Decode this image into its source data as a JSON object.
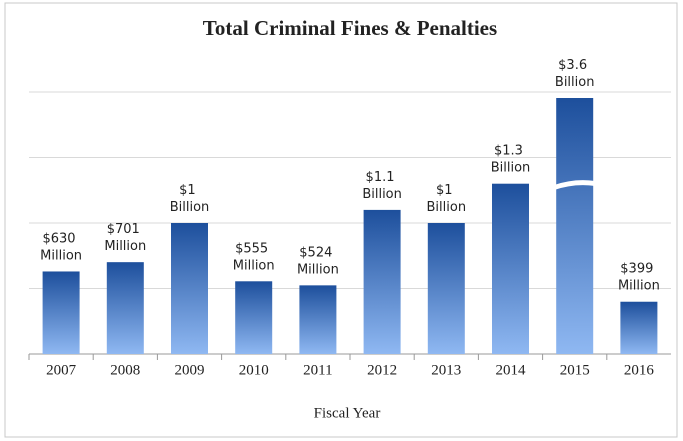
{
  "chart_data": {
    "type": "bar",
    "title": "Total Criminal Fines & Penalties",
    "x_label": "Fiscal Year",
    "categories": [
      "2007",
      "2008",
      "2009",
      "2010",
      "2011",
      "2012",
      "2013",
      "2014",
      "2015",
      "2016"
    ],
    "values": [
      630,
      701,
      1000,
      555,
      524,
      1100,
      1000,
      1300,
      3600,
      399
    ],
    "value_labels": [
      "$630 Million",
      "$701 Million",
      "$1 Billion",
      "$555 Million",
      "$524 Million",
      "$1.1 Billion",
      "$1 Billion",
      "$1.3 Billion",
      "$3.6 Billion",
      "$399 Million"
    ],
    "color": "#1d4f9c",
    "ylim": [
      0,
      2000
    ],
    "yticks": [
      0,
      500,
      1000,
      1500,
      2000
    ],
    "grid": true
  }
}
